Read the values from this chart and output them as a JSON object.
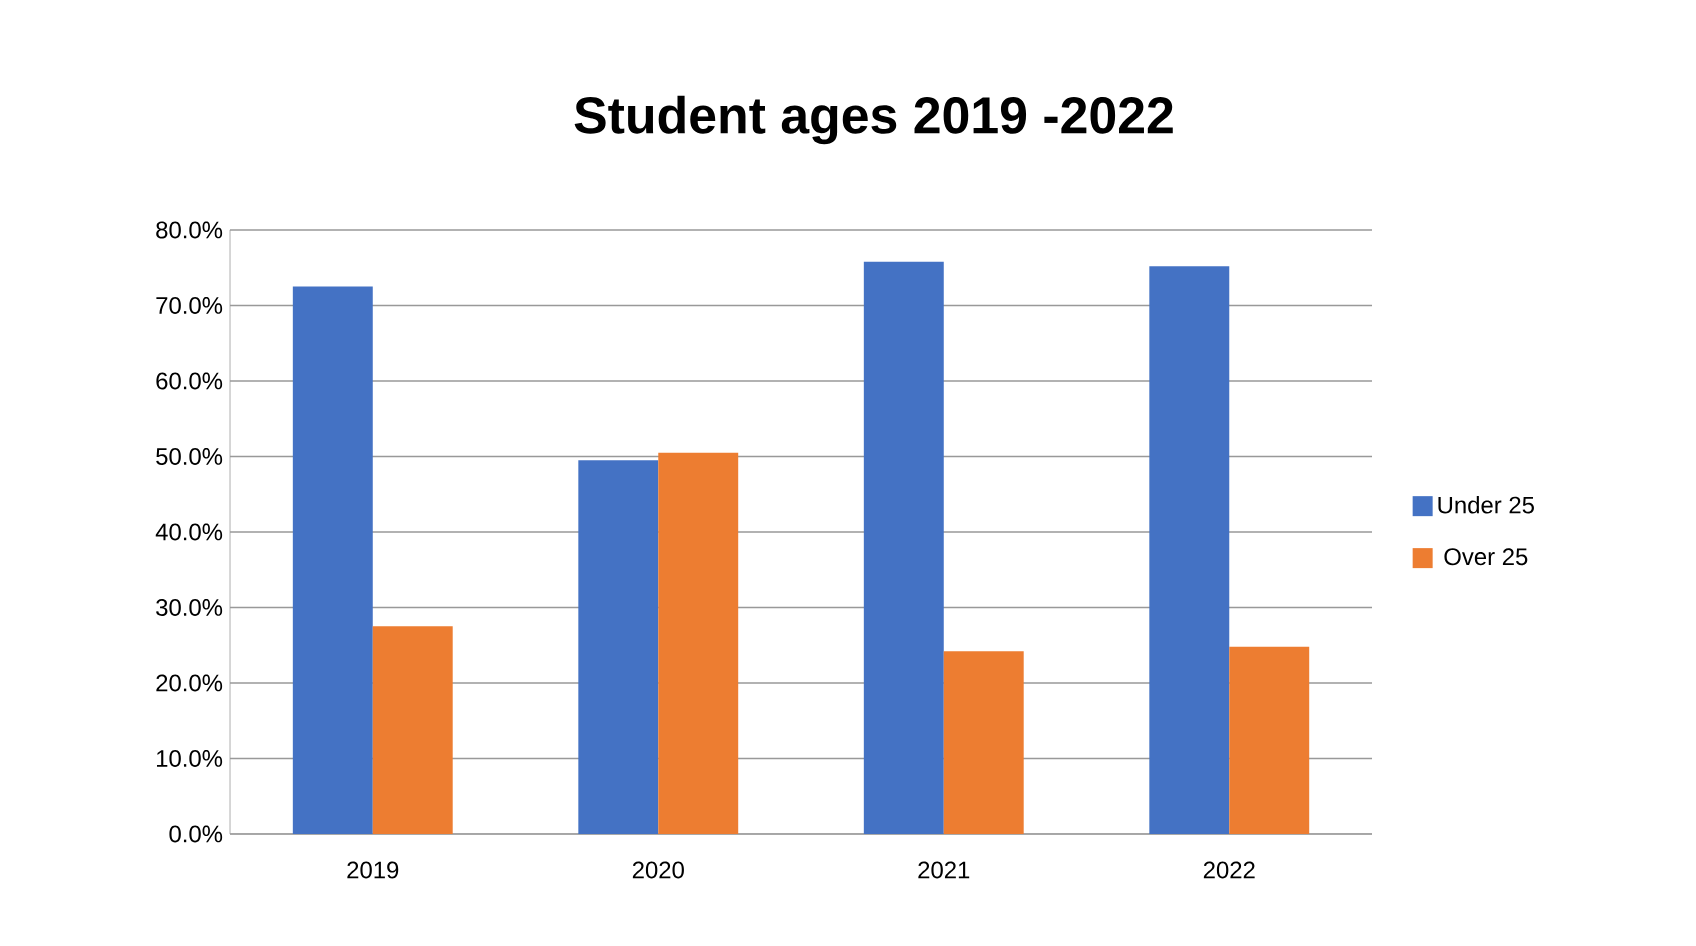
{
  "chart_data": {
    "type": "bar",
    "title": "Student ages 2019 -2022",
    "categories": [
      "2019",
      "2020",
      "2021",
      "2022"
    ],
    "series": [
      {
        "name": "Under 25",
        "color": "#4472c4",
        "values": [
          72.5,
          49.5,
          75.8,
          75.2
        ]
      },
      {
        "name": "Over 25",
        "color": "#ed7d31",
        "values": [
          27.5,
          50.5,
          24.2,
          24.8
        ]
      }
    ],
    "ylim": [
      0,
      80
    ],
    "yticks": [
      {
        "value": 0,
        "label": "0.0%"
      },
      {
        "value": 10,
        "label": "10.0%"
      },
      {
        "value": 20,
        "label": "20.0%"
      },
      {
        "value": 30,
        "label": "30.0%"
      },
      {
        "value": 40,
        "label": "40.0%"
      },
      {
        "value": 50,
        "label": "50.0%"
      },
      {
        "value": 60,
        "label": "60.0%"
      },
      {
        "value": 70,
        "label": "70.0%"
      },
      {
        "value": 80,
        "label": "80.0%"
      }
    ],
    "grid": "y",
    "legend": "right"
  }
}
